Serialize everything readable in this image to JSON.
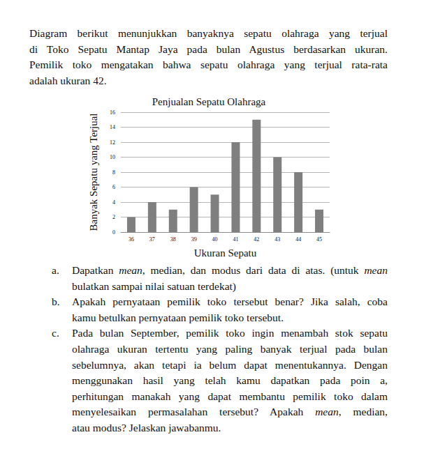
{
  "intro": {
    "lines": [
      "Diagram berikut menunjukkan banyaknya sepatu olahraga yang terjual",
      "di Toko Sepatu Mantap Jaya pada bulan Agustus berdasarkan ukuran.",
      "Pemilik toko mengatakan bahwa sepatu olahraga yang terjual rata-rata",
      "adalah ukuran 42."
    ]
  },
  "chart_data": {
    "type": "bar",
    "title": "Penjualan Sepatu Olahraga",
    "x_label": "Ukuran Sepatu",
    "y_label": "Banyak Sepatu yang Terjual",
    "categories": [
      "36",
      "37",
      "38",
      "39",
      "40",
      "41",
      "42",
      "43",
      "44",
      "45"
    ],
    "values": [
      2,
      4,
      3,
      6,
      5,
      12,
      15,
      10,
      8,
      3
    ],
    "color": "#7f7f7f",
    "ylim": [
      0,
      16
    ],
    "yticks": [
      0,
      2,
      4,
      6,
      8,
      10,
      12,
      14,
      16
    ],
    "grid": true
  },
  "questions": [
    {
      "label": "a.",
      "lines": [
        [
          "Dapatkan ",
          {
            "i": "mean"
          },
          ", median, dan modus dari data di atas. (untuk ",
          {
            "i": "mean"
          }
        ],
        [
          "bulatkan sampai nilai satuan terdekat)"
        ]
      ]
    },
    {
      "label": "b.",
      "lines": [
        [
          "Apakah pernyataan pemilik toko tersebut benar? Jika salah, coba"
        ],
        [
          "kamu betulkan pernyataan pemilik toko tersebut."
        ]
      ]
    },
    {
      "label": "c.",
      "lines": [
        [
          "Pada bulan September, pemilik toko ingin menambah stok sepatu"
        ],
        [
          "olahraga ukuran tertentu yang paling banyak terjual pada bulan"
        ],
        [
          "sebelumnya, akan tetapi ia belum dapat menentukannya. Dengan"
        ],
        [
          "menggunakan hasil yang telah kamu dapatkan pada poin a,"
        ],
        [
          "perhitungan manakah yang dapat membantu pemilik toko dalam"
        ],
        [
          "menyelesaikan permasalahan tersebut? Apakah ",
          {
            "i": "mean"
          },
          ", median,"
        ],
        [
          "atau modus? Jelaskan jawabanmu."
        ]
      ]
    }
  ]
}
